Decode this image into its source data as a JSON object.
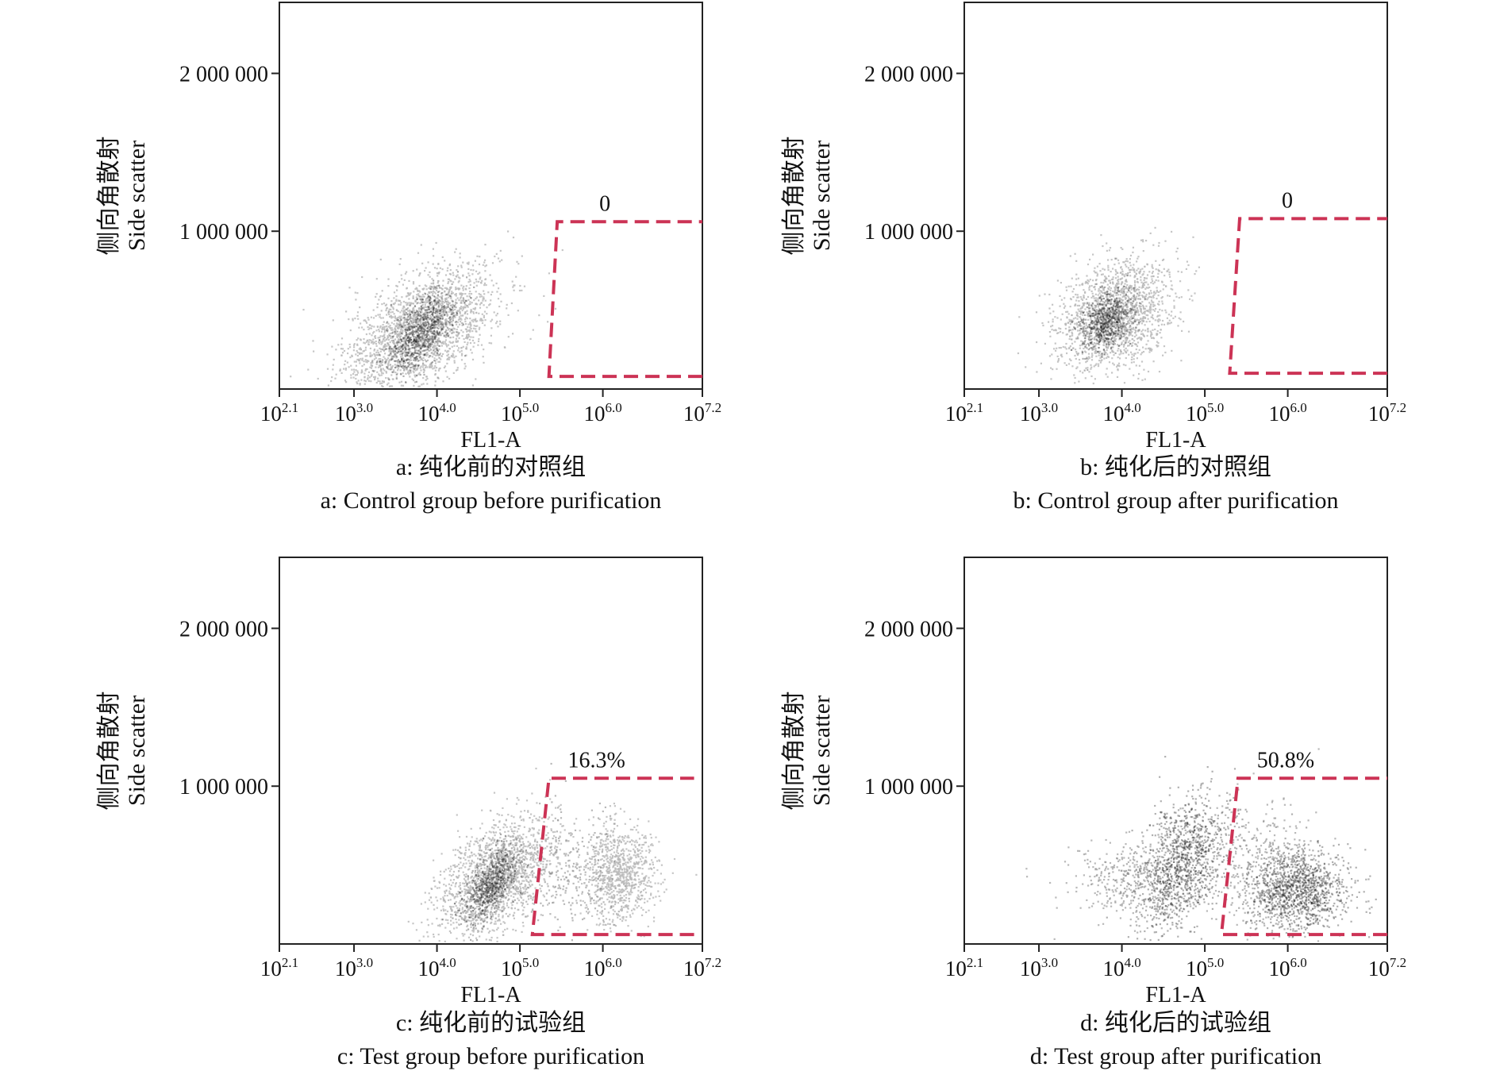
{
  "chart_data": [
    {
      "type": "scatter",
      "panel": "a",
      "xlabel": "FL1-A",
      "ylabel_cn": "侧向角散射",
      "ylabel_en": "Side scatter",
      "x_scale": "log",
      "x_ticks": [
        {
          "value": 2.1,
          "label_base": "10",
          "label_exp": "2.1"
        },
        {
          "value": 3.0,
          "label_base": "10",
          "label_exp": "3.0"
        },
        {
          "value": 4.0,
          "label_base": "10",
          "label_exp": "4.0"
        },
        {
          "value": 5.0,
          "label_base": "10",
          "label_exp": "5.0"
        },
        {
          "value": 6.0,
          "label_base": "10",
          "label_exp": "6.0"
        },
        {
          "value": 7.2,
          "label_base": "10",
          "label_exp": "7.2"
        }
      ],
      "y_ticks": [
        {
          "value": 1000000,
          "label": "1 000 000"
        },
        {
          "value": 2000000,
          "label": "2 000 000"
        }
      ],
      "xlim_log10": [
        2.1,
        7.2
      ],
      "ylim": [
        0,
        2450000
      ],
      "caption_cn": "a: 纯化前的对照组",
      "caption_en": "a: Control group before purification",
      "gate_label": "0",
      "gate_log10_x": [
        5.35,
        5.45,
        7.2
      ],
      "gate_y": [
        80000,
        1060000
      ],
      "populations": [
        {
          "center_log10_x": 3.8,
          "center_y": 380000,
          "spread_log10_x": 0.45,
          "spread_y": 170000,
          "tilt": 0.6,
          "count": 2200,
          "shade": "light"
        },
        {
          "center_log10_x": 3.8,
          "center_y": 360000,
          "spread_log10_x": 0.22,
          "spread_y": 100000,
          "tilt": 0.7,
          "count": 700,
          "shade": "dark"
        }
      ]
    },
    {
      "type": "scatter",
      "panel": "b",
      "xlabel": "FL1-A",
      "ylabel_cn": "侧向角散射",
      "ylabel_en": "Side scatter",
      "x_scale": "log",
      "x_ticks": [
        {
          "value": 2.1,
          "label_base": "10",
          "label_exp": "2.1"
        },
        {
          "value": 3.0,
          "label_base": "10",
          "label_exp": "3.0"
        },
        {
          "value": 4.0,
          "label_base": "10",
          "label_exp": "4.0"
        },
        {
          "value": 5.0,
          "label_base": "10",
          "label_exp": "5.0"
        },
        {
          "value": 6.0,
          "label_base": "10",
          "label_exp": "6.0"
        },
        {
          "value": 7.2,
          "label_base": "10",
          "label_exp": "7.2"
        }
      ],
      "y_ticks": [
        {
          "value": 1000000,
          "label": "1 000 000"
        },
        {
          "value": 2000000,
          "label": "2 000 000"
        }
      ],
      "xlim_log10": [
        2.1,
        7.2
      ],
      "ylim": [
        0,
        2450000
      ],
      "caption_cn": "b: 纯化后的对照组",
      "caption_en": "b: Control group after purification",
      "gate_label": "0",
      "gate_log10_x": [
        5.3,
        5.42,
        7.2
      ],
      "gate_y": [
        100000,
        1080000
      ],
      "populations": [
        {
          "center_log10_x": 3.9,
          "center_y": 470000,
          "spread_log10_x": 0.35,
          "spread_y": 170000,
          "tilt": 0.3,
          "count": 1700,
          "shade": "light"
        },
        {
          "center_log10_x": 3.8,
          "center_y": 440000,
          "spread_log10_x": 0.16,
          "spread_y": 90000,
          "tilt": 0.4,
          "count": 600,
          "shade": "dark"
        }
      ]
    },
    {
      "type": "scatter",
      "panel": "c",
      "xlabel": "FL1-A",
      "ylabel_cn": "侧向角散射",
      "ylabel_en": "Side scatter",
      "x_scale": "log",
      "x_ticks": [
        {
          "value": 2.1,
          "label_base": "10",
          "label_exp": "2.1"
        },
        {
          "value": 3.0,
          "label_base": "10",
          "label_exp": "3.0"
        },
        {
          "value": 4.0,
          "label_base": "10",
          "label_exp": "4.0"
        },
        {
          "value": 5.0,
          "label_base": "10",
          "label_exp": "5.0"
        },
        {
          "value": 6.0,
          "label_base": "10",
          "label_exp": "6.0"
        },
        {
          "value": 7.2,
          "label_base": "10",
          "label_exp": "7.2"
        }
      ],
      "y_ticks": [
        {
          "value": 1000000,
          "label": "1 000 000"
        },
        {
          "value": 2000000,
          "label": "2 000 000"
        }
      ],
      "xlim_log10": [
        2.1,
        7.2
      ],
      "ylim": [
        0,
        2450000
      ],
      "caption_cn": "c: 纯化前的试验组",
      "caption_en": "c: Test group before purification",
      "gate_label": "16.3%",
      "gate_log10_x": [
        5.15,
        5.35,
        7.1
      ],
      "gate_y": [
        60000,
        1050000
      ],
      "populations": [
        {
          "center_log10_x": 4.7,
          "center_y": 420000,
          "spread_log10_x": 0.35,
          "spread_y": 170000,
          "tilt": 0.6,
          "count": 1800,
          "shade": "light"
        },
        {
          "center_log10_x": 4.65,
          "center_y": 380000,
          "spread_log10_x": 0.16,
          "spread_y": 100000,
          "tilt": 0.7,
          "count": 600,
          "shade": "dark"
        },
        {
          "center_log10_x": 6.2,
          "center_y": 460000,
          "spread_log10_x": 0.22,
          "spread_y": 160000,
          "tilt": 0.0,
          "count": 900,
          "shade": "light"
        },
        {
          "center_log10_x": 5.6,
          "center_y": 450000,
          "spread_log10_x": 0.3,
          "spread_y": 200000,
          "tilt": 0.0,
          "count": 250,
          "shade": "sparse"
        }
      ]
    },
    {
      "type": "scatter",
      "panel": "d",
      "xlabel": "FL1-A",
      "ylabel_cn": "侧向角散射",
      "ylabel_en": "Side scatter",
      "x_scale": "log",
      "x_ticks": [
        {
          "value": 2.1,
          "label_base": "10",
          "label_exp": "2.1"
        },
        {
          "value": 3.0,
          "label_base": "10",
          "label_exp": "3.0"
        },
        {
          "value": 4.0,
          "label_base": "10",
          "label_exp": "4.0"
        },
        {
          "value": 5.0,
          "label_base": "10",
          "label_exp": "5.0"
        },
        {
          "value": 6.0,
          "label_base": "10",
          "label_exp": "6.0"
        },
        {
          "value": 7.2,
          "label_base": "10",
          "label_exp": "7.2"
        }
      ],
      "y_ticks": [
        {
          "value": 1000000,
          "label": "1 000 000"
        },
        {
          "value": 2000000,
          "label": "2 000 000"
        }
      ],
      "xlim_log10": [
        2.1,
        7.2
      ],
      "ylim": [
        0,
        2450000
      ],
      "caption_cn": "d: 纯化后的试验组",
      "caption_en": "d: Test group after purification",
      "gate_label": "50.8%",
      "gate_log10_x": [
        5.2,
        5.4,
        7.2
      ],
      "gate_y": [
        60000,
        1050000
      ],
      "populations": [
        {
          "center_log10_x": 4.7,
          "center_y": 500000,
          "spread_log10_x": 0.28,
          "spread_y": 200000,
          "tilt": 0.4,
          "count": 1300,
          "shade": "dark"
        },
        {
          "center_log10_x": 4.1,
          "center_y": 400000,
          "spread_log10_x": 0.35,
          "spread_y": 120000,
          "tilt": 0.0,
          "count": 350,
          "shade": "sparse"
        },
        {
          "center_log10_x": 6.1,
          "center_y": 350000,
          "spread_log10_x": 0.3,
          "spread_y": 130000,
          "tilt": 0.0,
          "count": 1300,
          "shade": "dark"
        },
        {
          "center_log10_x": 5.7,
          "center_y": 500000,
          "spread_log10_x": 0.35,
          "spread_y": 220000,
          "tilt": 0.0,
          "count": 350,
          "shade": "sparse"
        }
      ]
    }
  ]
}
